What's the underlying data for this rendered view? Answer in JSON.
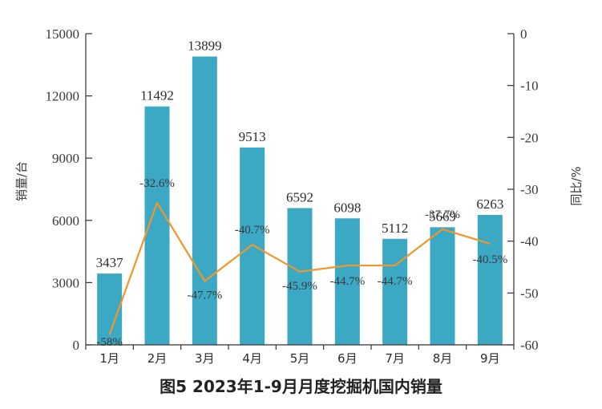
{
  "chart_data": {
    "type": "bar",
    "title": "图5  2023年1-9月月度挖掘机国内销量",
    "categories": [
      "1月",
      "2月",
      "3月",
      "4月",
      "5月",
      "6月",
      "7月",
      "8月",
      "9月"
    ],
    "series": [
      {
        "name": "销量",
        "axis": "left",
        "chart_type": "bar",
        "values": [
          3437,
          11492,
          13899,
          9513,
          6592,
          6098,
          5112,
          5669,
          6263
        ],
        "labels": [
          "3437",
          "11492",
          "13899",
          "9513",
          "6592",
          "6098",
          "5112",
          "5669",
          "6263"
        ]
      },
      {
        "name": "同比",
        "axis": "right",
        "chart_type": "line",
        "values": [
          -58,
          -32.6,
          -47.7,
          -40.7,
          -45.9,
          -44.7,
          -44.7,
          -37.7,
          -40.5
        ],
        "labels": [
          "-58%",
          "-32.6%",
          "-47.7%",
          "-40.7%",
          "-45.9%",
          "-44.7%",
          "-44.7%",
          "-37.7%",
          "-40.5%"
        ]
      }
    ],
    "ylabel": "销量/台",
    "y2label": "同比/%",
    "ylim": [
      0,
      15000
    ],
    "y2lim": [
      -60,
      0
    ],
    "yticks": [
      "0",
      "3000",
      "6000",
      "9000",
      "12000",
      "15000"
    ],
    "y2ticks": [
      "0",
      "-10",
      "-20",
      "-30",
      "-40",
      "-50",
      "-60"
    ],
    "colors": {
      "bar": "#3ba8c4",
      "line": "#f0962a",
      "axis": "#333333"
    },
    "grid": false
  }
}
